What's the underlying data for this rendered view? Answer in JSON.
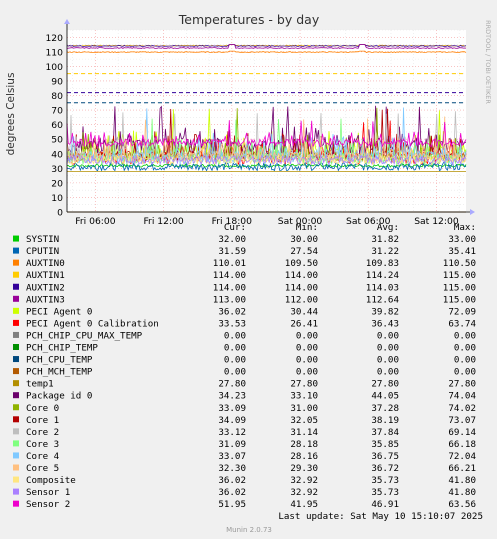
{
  "chart_data": {
    "type": "line",
    "title": "Temperatures - by day",
    "ylabel": "degrees Celsius",
    "xlabel": "",
    "side_label": "RRDTOOL / TOBI OETIKER",
    "ylim": [
      0,
      125
    ],
    "y_ticks": [
      0,
      10,
      20,
      30,
      40,
      50,
      60,
      70,
      80,
      90,
      100,
      110,
      120
    ],
    "x_ticks": [
      "Fri 06:00",
      "Fri 12:00",
      "Fri 18:00",
      "Sat 00:00",
      "Sat 06:00",
      "Sat 12:00"
    ],
    "x_range_hours": [
      3.5,
      38.6
    ],
    "x_tick_hours": [
      6,
      12,
      18,
      24,
      30,
      36
    ],
    "grid": true,
    "legend_columns": [
      "Cur:",
      "Min:",
      "Avg:",
      "Max:"
    ],
    "series": [
      {
        "name": "SYSTIN",
        "color": "#00cc00",
        "cur": "32.00",
        "min": "30.00",
        "avg": "31.82",
        "max": "33.00"
      },
      {
        "name": "CPUTIN",
        "color": "#0066b3",
        "cur": "31.59",
        "min": "27.54",
        "avg": "31.22",
        "max": "35.41"
      },
      {
        "name": "AUXTIN0",
        "color": "#ff8000",
        "cur": "110.01",
        "min": "109.50",
        "avg": "109.83",
        "max": "110.50"
      },
      {
        "name": "AUXTIN1",
        "color": "#ffcc00",
        "cur": "114.00",
        "min": "114.00",
        "avg": "114.24",
        "max": "115.00"
      },
      {
        "name": "AUXTIN2",
        "color": "#330099",
        "cur": "114.00",
        "min": "114.00",
        "avg": "114.03",
        "max": "115.00"
      },
      {
        "name": "AUXTIN3",
        "color": "#990099",
        "cur": "113.00",
        "min": "112.00",
        "avg": "112.64",
        "max": "115.00"
      },
      {
        "name": "PECI Agent 0",
        "color": "#ccff00",
        "cur": "36.02",
        "min": "30.44",
        "avg": "39.82",
        "max": "72.09"
      },
      {
        "name": "PECI Agent 0 Calibration",
        "color": "#ff0000",
        "cur": "33.53",
        "min": "26.41",
        "avg": "36.43",
        "max": "63.74"
      },
      {
        "name": "PCH_CHIP_CPU_MAX_TEMP",
        "color": "#808080",
        "cur": "0.00",
        "min": "0.00",
        "avg": "0.00",
        "max": "0.00"
      },
      {
        "name": "PCH_CHIP_TEMP",
        "color": "#008f00",
        "cur": "0.00",
        "min": "0.00",
        "avg": "0.00",
        "max": "0.00"
      },
      {
        "name": "PCH_CPU_TEMP",
        "color": "#00487d",
        "cur": "0.00",
        "min": "0.00",
        "avg": "0.00",
        "max": "0.00"
      },
      {
        "name": "PCH_MCH_TEMP",
        "color": "#b35a00",
        "cur": "0.00",
        "min": "0.00",
        "avg": "0.00",
        "max": "0.00"
      },
      {
        "name": "temp1",
        "color": "#b38f00",
        "cur": "27.80",
        "min": "27.80",
        "avg": "27.80",
        "max": "27.80"
      },
      {
        "name": "Package id 0",
        "color": "#6b006b",
        "cur": "34.23",
        "min": "33.10",
        "avg": "44.05",
        "max": "74.04"
      },
      {
        "name": "Core 0",
        "color": "#8fb300",
        "cur": "33.09",
        "min": "31.00",
        "avg": "37.28",
        "max": "74.02"
      },
      {
        "name": "Core 1",
        "color": "#b30000",
        "cur": "34.09",
        "min": "32.05",
        "avg": "38.19",
        "max": "73.07"
      },
      {
        "name": "Core 2",
        "color": "#bebebe",
        "cur": "33.12",
        "min": "31.14",
        "avg": "37.84",
        "max": "69.14"
      },
      {
        "name": "Core 3",
        "color": "#80ff80",
        "cur": "31.09",
        "min": "28.18",
        "avg": "35.85",
        "max": "66.18"
      },
      {
        "name": "Core 4",
        "color": "#80c9ff",
        "cur": "33.07",
        "min": "28.16",
        "avg": "36.75",
        "max": "72.04"
      },
      {
        "name": "Core 5",
        "color": "#ffc080",
        "cur": "32.30",
        "min": "29.30",
        "avg": "36.72",
        "max": "66.21"
      },
      {
        "name": "Composite",
        "color": "#ffe680",
        "cur": "36.02",
        "min": "32.92",
        "avg": "35.73",
        "max": "41.80"
      },
      {
        "name": "Sensor 1",
        "color": "#aa80ff",
        "cur": "36.02",
        "min": "32.92",
        "avg": "35.73",
        "max": "41.80"
      },
      {
        "name": "Sensor 2",
        "color": "#ee00cc",
        "cur": "51.95",
        "min": "41.95",
        "avg": "46.91",
        "max": "63.56"
      }
    ],
    "dashed_lines": [
      {
        "value": 95,
        "color": "#ffcc00"
      },
      {
        "value": 82,
        "color": "#330099"
      },
      {
        "value": 75,
        "color": "#00487d"
      }
    ],
    "last_update": "Last update: Sat May 10 15:10:07 2025",
    "footer": "Munin 2.0.73"
  }
}
